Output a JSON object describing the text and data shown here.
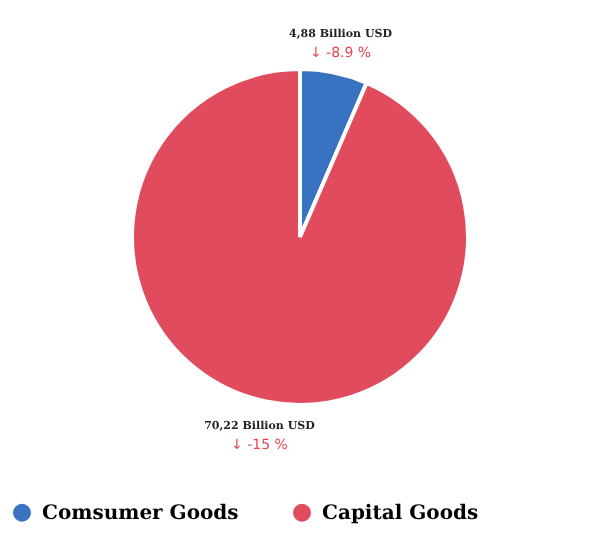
{
  "chart_data": {
    "type": "pie",
    "categories": [
      "Comsumer Goods",
      "Capital Goods"
    ],
    "values": [
      4.88,
      70.22
    ],
    "colors": [
      "#3a72c2",
      "#e04c5e"
    ],
    "value_labels": [
      "4,88 Billion USD",
      "70,22 Billion USD"
    ],
    "annotations": [
      "↓ -8.9 %",
      "↓ -15 %"
    ],
    "legend": "bottom"
  }
}
